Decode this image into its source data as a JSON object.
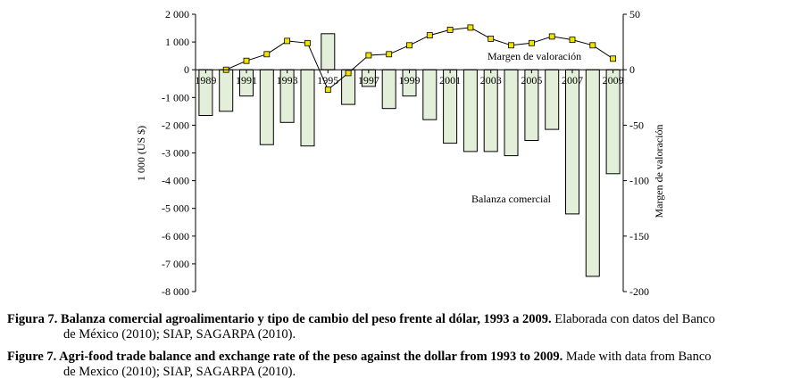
{
  "chart_data": {
    "type": "bar+line",
    "x": [
      1989,
      1990,
      1991,
      1992,
      1993,
      1994,
      1995,
      1996,
      1997,
      1998,
      1999,
      2000,
      2001,
      2002,
      2003,
      2004,
      2005,
      2006,
      2007,
      2008,
      2009
    ],
    "xticklabels": [
      "1989",
      "1991",
      "1993",
      "1995",
      "1997",
      "1999",
      "2001",
      "2003",
      "2005",
      "2007",
      "2009"
    ],
    "series": [
      {
        "name": "Balanza comercial",
        "type": "bar",
        "axis": "left",
        "values": [
          -1650,
          -1500,
          -950,
          -2700,
          -1900,
          -2750,
          1300,
          -1250,
          -600,
          -1400,
          -950,
          -1800,
          -2650,
          -2950,
          -2950,
          -3100,
          -2550,
          -2150,
          -5200,
          -7450,
          -3750
        ]
      },
      {
        "name": "Margen de valoración",
        "type": "line",
        "axis": "right",
        "values": [
          null,
          0,
          8,
          14,
          26,
          24,
          -18,
          -3,
          13,
          14,
          22,
          31,
          36,
          38,
          28,
          22,
          24,
          30,
          27,
          22,
          10
        ]
      }
    ],
    "ylabel_left": "1 000 (US $)",
    "ylim_left": [
      -8000,
      2000
    ],
    "yticks_left": [
      2000,
      1000,
      0,
      -1000,
      -2000,
      -3000,
      -4000,
      -5000,
      -6000,
      -7000,
      -8000
    ],
    "yticklabels_left": [
      "2 000",
      "1 000",
      "0",
      "-1 000",
      "-2 000",
      "-3 000",
      "-4 000",
      "-5 000",
      "-6 000",
      "-7 000",
      "-8 000"
    ],
    "ylabel_right": "Margen de valoración",
    "ylim_right": [
      -200,
      50
    ],
    "yticks_right": [
      50,
      0,
      -50,
      -100,
      -150,
      -200
    ],
    "annotations": [
      "Margen de valoración",
      "Balanza comercial"
    ],
    "grid": false,
    "colors": {
      "bar_fill": "#e3efd9",
      "bar_stroke": "#000000",
      "marker_fill": "#f2e200",
      "line": "#000000"
    }
  },
  "caption": {
    "es_bold": "Figura 7. Balanza comercial agroalimentario y tipo de cambio del peso frente al dólar, 1993 a 2009.",
    "es_rest_1": " Elaborada con datos del Banco",
    "es_rest_2": "de México (2010); SIAP, SAGARPA (2010).",
    "en_bold": "Figure 7. Agri-food trade balance and exchange rate of the peso against the dollar from 1993 to 2009.",
    "en_rest_1": " Made with data from Banco",
    "en_rest_2": "de Mexico (2010); SIAP, SAGARPA (2010)."
  }
}
